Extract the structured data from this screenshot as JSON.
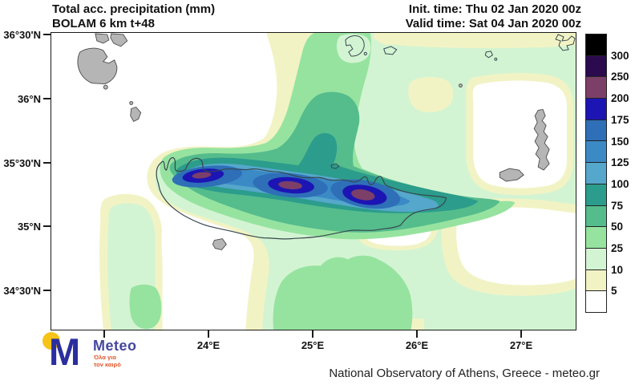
{
  "header": {
    "title_line1": "Total acc. precipitation (mm)",
    "title_line2": "BOLAM 6 km t+48",
    "init_time": "Init. time: Thu 02 Jan 2020 00z",
    "valid_time": "Valid time: Sat 04 Jan 2020 00z"
  },
  "map": {
    "y_axis_labels": [
      "36°30'N",
      "36°N",
      "35°30'N",
      "35°N",
      "34°30'N"
    ],
    "x_axis_labels": [
      "24°E",
      "25°E",
      "26°E",
      "27°E"
    ],
    "island_fill": "#b5b5b5",
    "coastline_color": "#37474f"
  },
  "colorbar": {
    "labels": [
      "300",
      "250",
      "200",
      "175",
      "150",
      "125",
      "100",
      "75",
      "50",
      "25",
      "10",
      "5"
    ],
    "palette": [
      "#000000",
      "#2b0a4e",
      "#7c3f68",
      "#1c15b4",
      "#2e6fb8",
      "#3b8ac6",
      "#55a7cb",
      "#2c9c8c",
      "#55bc8c",
      "#96e3a0",
      "#d3f4d2",
      "#f2f3c4",
      "#ffffff"
    ]
  },
  "footer": {
    "credit": "National Observatory of Athens, Greece - meteo.gr",
    "logo_name": "Meteo",
    "logo_letter": "M",
    "logo_tagline_line1": "Όλα για",
    "logo_tagline_line2": "τον καιρό"
  }
}
